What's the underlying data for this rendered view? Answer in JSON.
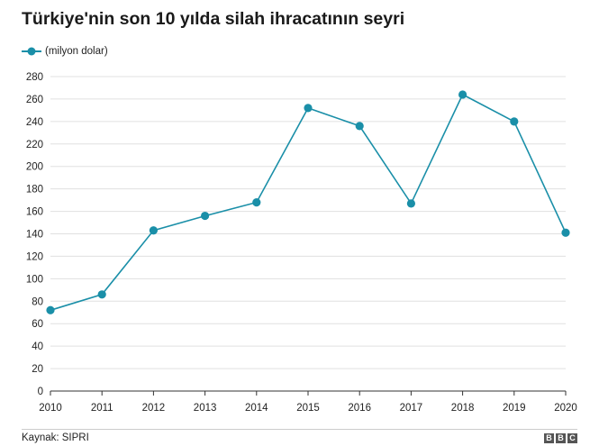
{
  "header": {
    "title": "Türkiye'nin son 10 yılda silah ihracatının seyri"
  },
  "legend": {
    "label": "(milyon dolar)"
  },
  "footer": {
    "source": "Kaynak: SIPRI",
    "logo_letters": [
      "B",
      "B",
      "C"
    ]
  },
  "colors": {
    "series": "#1a8fa8",
    "grid": "#e0e0e0",
    "axis": "#333333"
  },
  "chart_data": {
    "type": "line",
    "x": [
      "2010",
      "2011",
      "2012",
      "2013",
      "2014",
      "2015",
      "2016",
      "2017",
      "2018",
      "2019",
      "2020"
    ],
    "series": [
      {
        "name": "(milyon dolar)",
        "values": [
          72,
          86,
          143,
          156,
          168,
          252,
          236,
          167,
          264,
          240,
          141
        ]
      }
    ],
    "y_ticks": [
      0,
      20,
      40,
      60,
      80,
      100,
      120,
      140,
      160,
      180,
      200,
      220,
      240,
      260,
      280
    ],
    "ylim": [
      0,
      280
    ],
    "grid": true,
    "legend_position": "top-left"
  }
}
